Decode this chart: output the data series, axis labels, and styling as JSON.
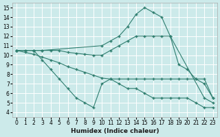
{
  "xlabel": "Humidex (Indice chaleur)",
  "background_color": "#cceaea",
  "grid_color": "#b8d8d8",
  "line_color": "#2e7d6e",
  "xlim": [
    -0.5,
    23.5
  ],
  "ylim": [
    3.5,
    15.5
  ],
  "xticks": [
    0,
    1,
    2,
    3,
    4,
    5,
    6,
    7,
    8,
    9,
    10,
    11,
    12,
    13,
    14,
    15,
    16,
    17,
    18,
    19,
    20,
    21,
    22,
    23
  ],
  "yticks": [
    4,
    5,
    6,
    7,
    8,
    9,
    10,
    11,
    12,
    13,
    14,
    15
  ],
  "line1_x": [
    0,
    1,
    2,
    3,
    10,
    11,
    12,
    13,
    14,
    15,
    16,
    17,
    18,
    22,
    23
  ],
  "line1_y": [
    10.5,
    10.5,
    10.5,
    10.5,
    11.0,
    11.5,
    12.0,
    13.0,
    14.3,
    15.0,
    14.5,
    14.0,
    12.0,
    5.5,
    5.0
  ],
  "line2_x": [
    0,
    1,
    2,
    3,
    4,
    5,
    6,
    7,
    8,
    9,
    10,
    11,
    12,
    13,
    14,
    15,
    16,
    17,
    18,
    19,
    20,
    21,
    22,
    23
  ],
  "line2_y": [
    10.5,
    10.5,
    10.5,
    10.5,
    10.5,
    10.5,
    10.3,
    10.2,
    10.1,
    10.0,
    10.0,
    10.5,
    11.0,
    11.5,
    12.0,
    12.0,
    12.0,
    12.0,
    12.0,
    9.0,
    8.5,
    7.5,
    7.0,
    5.5
  ],
  "line3_x": [
    0,
    1,
    2,
    3,
    4,
    5,
    6,
    7,
    8,
    9,
    10,
    11,
    12,
    13,
    14,
    15,
    16,
    17,
    18,
    19,
    20,
    21,
    22,
    23
  ],
  "line3_y": [
    10.5,
    10.3,
    10.1,
    9.8,
    9.5,
    9.2,
    8.8,
    8.5,
    8.2,
    7.9,
    7.6,
    7.5,
    7.5,
    7.5,
    7.5,
    7.5,
    7.5,
    7.5,
    7.5,
    7.5,
    7.5,
    7.5,
    7.5,
    5.5
  ],
  "line4_x": [
    0,
    2,
    3,
    4,
    5,
    6,
    7,
    8,
    9,
    10,
    11,
    12,
    13,
    14,
    15,
    16,
    17,
    18,
    19,
    20,
    21,
    22,
    23
  ],
  "line4_y": [
    10.5,
    10.5,
    9.5,
    8.5,
    7.5,
    6.5,
    5.5,
    5.0,
    4.5,
    7.0,
    7.5,
    7.0,
    6.5,
    6.5,
    6.0,
    5.5,
    5.5,
    5.5,
    5.5,
    5.5,
    5.0,
    4.5,
    4.5
  ]
}
